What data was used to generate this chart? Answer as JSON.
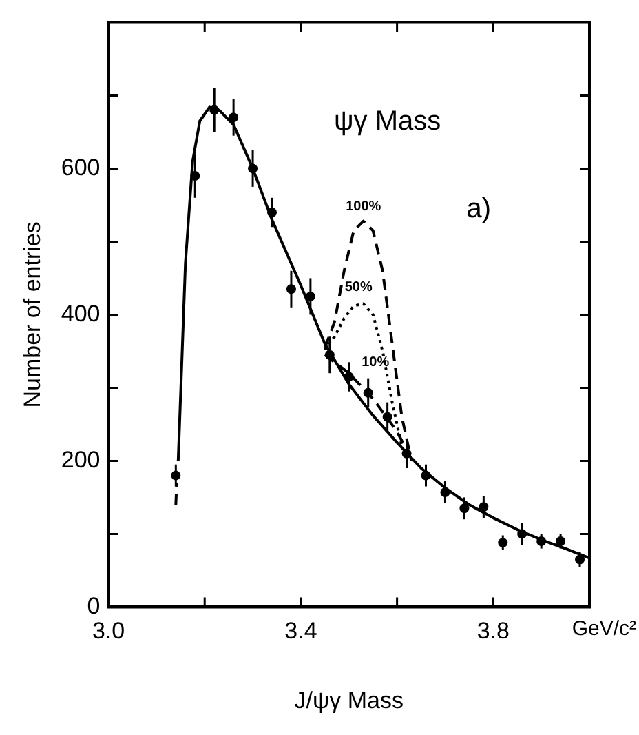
{
  "chart_data": {
    "type": "scatter",
    "xlabel": "J/ψγ Mass",
    "ylabel": "Number of entries",
    "xlim": [
      3.0,
      4.0
    ],
    "xticks": [
      {
        "value": 3.0,
        "label": "3.0"
      },
      {
        "value": 3.2,
        "label": null
      },
      3.4,
      {
        "value": 3.6,
        "label": null
      },
      3.8
    ],
    "ylim": [
      0,
      800
    ],
    "yticks": [
      0,
      {
        "value": 100,
        "label": null
      },
      200,
      {
        "value": 300,
        "label": null
      },
      400,
      {
        "value": 500,
        "label": null
      },
      600,
      {
        "value": 700,
        "label": null
      }
    ],
    "grid": false,
    "legend": false,
    "marker": "circle",
    "annotations": [
      "ψγ Mass",
      "a)",
      "GeV/c²",
      "100%",
      "50%",
      "10%"
    ],
    "series": [
      {
        "color": "#000000",
        "x": [
          3.14,
          3.18,
          3.22,
          3.26,
          3.3,
          3.34,
          3.38,
          3.42,
          3.46,
          3.5,
          3.54,
          3.58,
          3.62,
          3.66,
          3.7,
          3.74,
          3.78,
          3.82,
          3.86,
          3.9,
          3.94,
          3.98
        ],
        "values": [
          180,
          590,
          680,
          670,
          600,
          540,
          435,
          425,
          345,
          315,
          293,
          260,
          210,
          180,
          157,
          135,
          137,
          88,
          100,
          90,
          90,
          65
        ],
        "errors": [
          15,
          30,
          30,
          25,
          25,
          20,
          25,
          25,
          25,
          20,
          20,
          20,
          20,
          15,
          15,
          15,
          15,
          10,
          15,
          10,
          10,
          10
        ]
      },
      {
        "type": "line",
        "color": "#000000",
        "line_style": "solid",
        "marker": "none",
        "x": [
          3.145,
          3.16,
          3.175,
          3.19,
          3.21,
          3.23,
          3.26,
          3.3,
          3.34,
          3.4,
          3.45,
          3.5,
          3.55,
          3.6,
          3.65,
          3.7,
          3.75,
          3.8,
          3.85,
          3.9,
          3.95,
          4.0
        ],
        "values": [
          200,
          470,
          610,
          665,
          684,
          680,
          660,
          600,
          530,
          440,
          360,
          305,
          262,
          225,
          190,
          163,
          140,
          122,
          106,
          92,
          80,
          67
        ]
      },
      {
        "type": "line",
        "color": "#000000",
        "line_style": "dashed",
        "marker": "none",
        "x": [
          3.14,
          3.142
        ],
        "values": [
          140,
          170
        ]
      },
      {
        "type": "line",
        "color": "#000000",
        "line_style": "dashed",
        "marker": "none",
        "x": [
          3.45,
          3.47,
          3.49,
          3.51,
          3.53,
          3.55,
          3.57,
          3.59,
          3.61,
          3.63
        ],
        "values": [
          355,
          390,
          460,
          515,
          528,
          515,
          460,
          360,
          260,
          200
        ]
      },
      {
        "type": "line",
        "color": "#000000",
        "line_style": "dotted",
        "marker": "none",
        "x": [
          3.45,
          3.47,
          3.49,
          3.51,
          3.53,
          3.55,
          3.57,
          3.59,
          3.61
        ],
        "values": [
          352,
          370,
          395,
          412,
          415,
          400,
          350,
          280,
          220
        ]
      },
      {
        "type": "line",
        "color": "#000000",
        "line_style": "dashed",
        "marker": "none",
        "x": [
          3.45,
          3.5,
          3.55,
          3.6,
          3.62
        ],
        "values": [
          345,
          320,
          285,
          240,
          215
        ]
      }
    ]
  }
}
